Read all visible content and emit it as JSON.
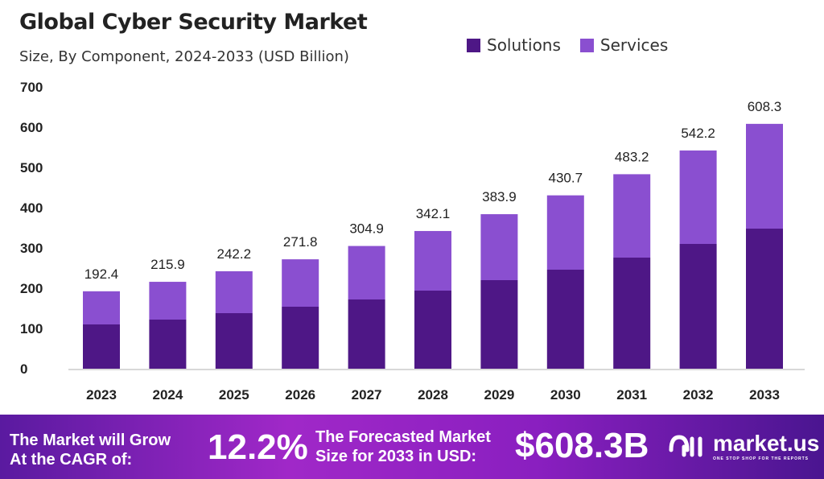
{
  "chart_data": {
    "type": "bar",
    "stacked": true,
    "title": "Global Cyber Security Market",
    "subtitle": "Size, By Component, 2024-2033 (USD Billion)",
    "categories": [
      "2023",
      "2024",
      "2025",
      "2026",
      "2027",
      "2028",
      "2029",
      "2030",
      "2031",
      "2032",
      "2033"
    ],
    "series": [
      {
        "name": "Solutions",
        "color": "#4e1786",
        "values": [
          110,
          122,
          138,
          154,
          172,
          194,
          220,
          246,
          276,
          310,
          348
        ]
      },
      {
        "name": "Services",
        "color": "#8a4fd0",
        "values": [
          82.4,
          93.9,
          104.2,
          117.8,
          132.9,
          148.1,
          163.9,
          184.7,
          207.2,
          232.2,
          260.3
        ]
      }
    ],
    "totals": [
      "192.4",
      "215.9",
      "242.2",
      "271.8",
      "304.9",
      "342.1",
      "383.9",
      "430.7",
      "483.2",
      "542.2",
      "608.3"
    ],
    "yticks": [
      "0",
      "100",
      "200",
      "300",
      "400",
      "500",
      "600",
      "700"
    ],
    "ylim": [
      0,
      700
    ],
    "grid": false,
    "legend": "top-right"
  },
  "footer": {
    "cagr_label_1": "The Market will Grow",
    "cagr_label_2": "At the CAGR of:",
    "cagr_value": "12.2%",
    "forecast_label_1": "The Forecasted Market",
    "forecast_label_2": "Size for 2033 in USD:",
    "forecast_value": "$608.3B",
    "brand": "market.us",
    "brand_tagline": "ONE STOP SHOP FOR THE REPORTS"
  }
}
